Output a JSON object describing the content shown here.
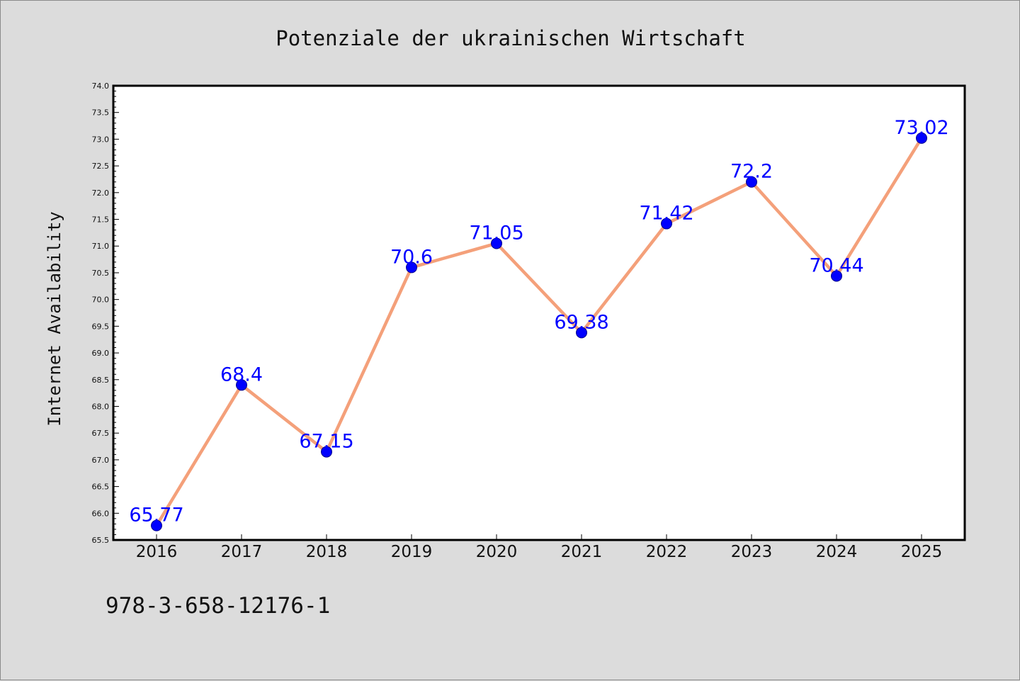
{
  "chart_data": {
    "type": "line",
    "title": "Potenziale der ukrainischen Wirtschaft",
    "xlabel": "",
    "ylabel": "Internet Availability",
    "categories": [
      "2016",
      "2017",
      "2018",
      "2019",
      "2020",
      "2021",
      "2022",
      "2023",
      "2024",
      "2025"
    ],
    "series": [
      {
        "values": [
          65.77,
          68.4,
          67.15,
          70.6,
          71.05,
          69.38,
          71.42,
          72.2,
          70.44,
          73.02
        ],
        "labels": [
          "65.77",
          "68.4",
          "67.15",
          "70.6",
          "71.05",
          "69.38",
          "71.42",
          "72.2",
          "70.44",
          "73.02"
        ],
        "line_color": "#f4a07a",
        "marker_color": "#0000ff"
      }
    ],
    "ylim": [
      65.5,
      74.0
    ],
    "yticks": [
      "65.5",
      "66.0",
      "66.5",
      "67.0",
      "67.5",
      "68.0",
      "68.5",
      "69.0",
      "69.5",
      "70.0",
      "70.5",
      "71.0",
      "71.5",
      "72.0",
      "72.5",
      "73.0",
      "73.5",
      "74.0"
    ],
    "grid": false,
    "legend": "none"
  },
  "footer": {
    "code": "978-3-658-12176-1"
  }
}
